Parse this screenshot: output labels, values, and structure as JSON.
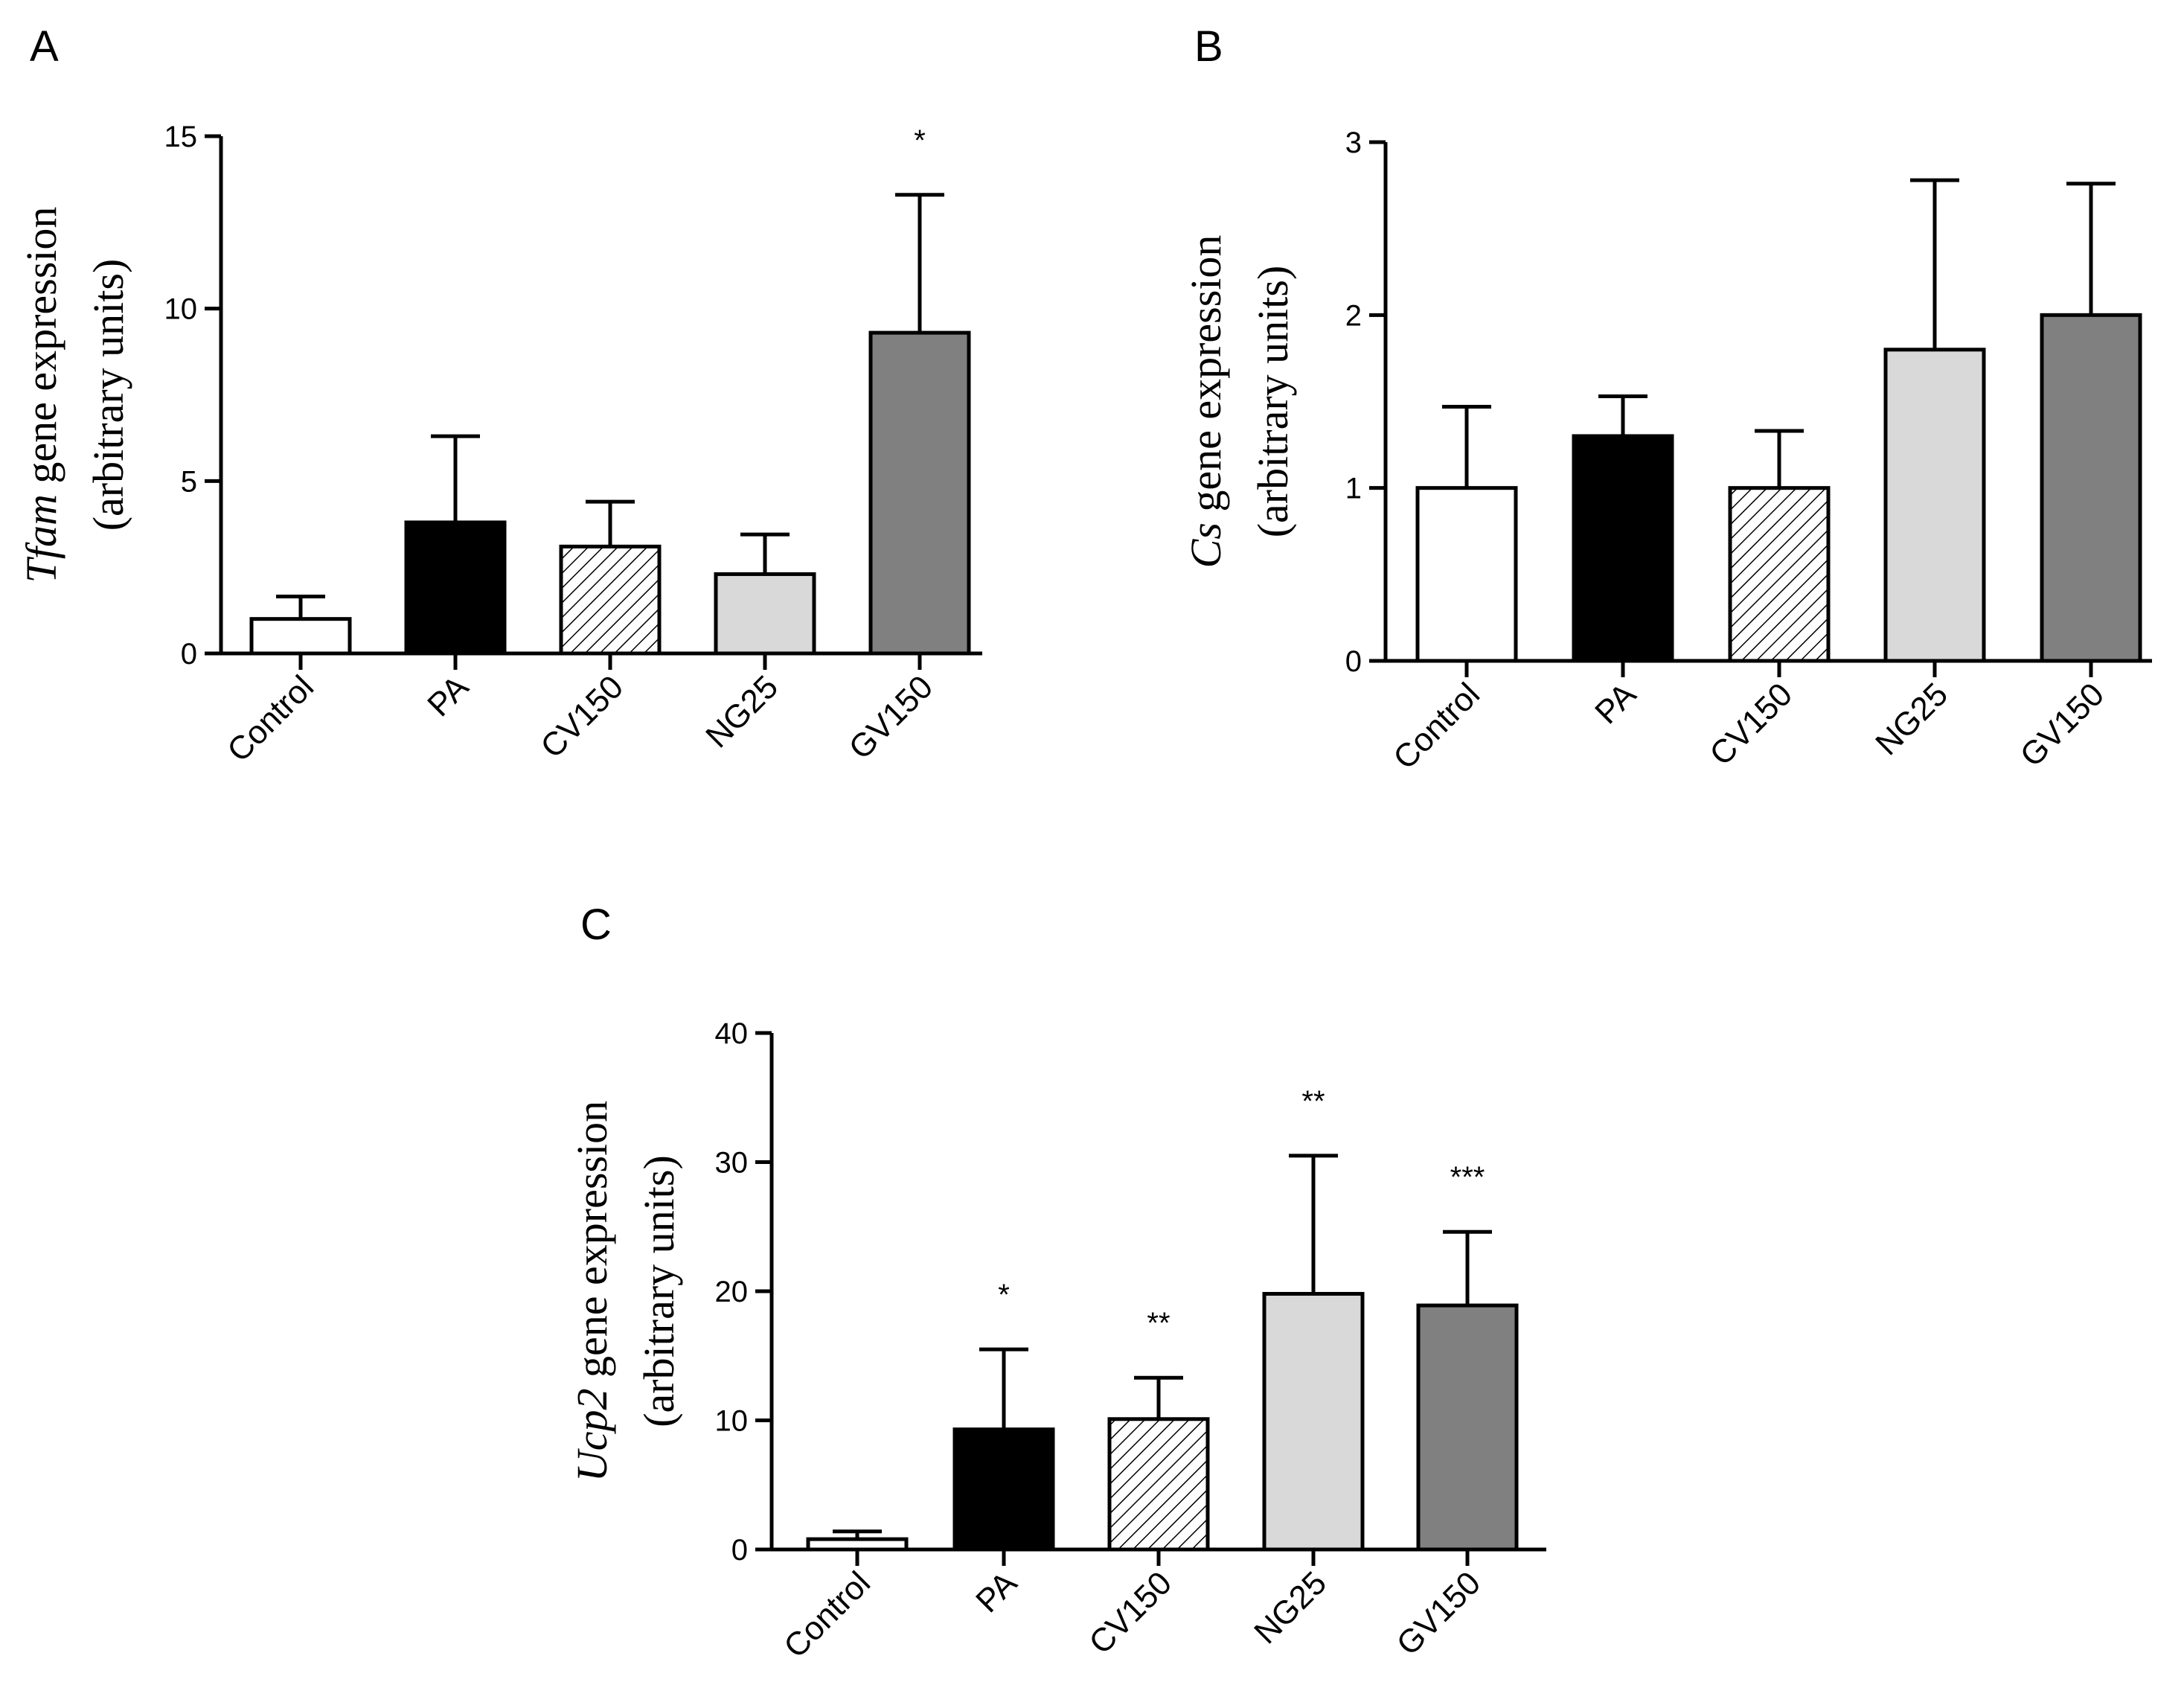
{
  "chart_data": [
    {
      "panel": "A",
      "type": "bar",
      "categories": [
        "Control",
        "PA",
        "CV150",
        "NG25",
        "GV150"
      ],
      "values": [
        1.0,
        3.8,
        3.1,
        2.3,
        9.3
      ],
      "errors": [
        0.65,
        2.5,
        1.3,
        1.15,
        4.0
      ],
      "significance": [
        "",
        "",
        "",
        "",
        "*"
      ],
      "fills": [
        "#ffffff",
        "#000000",
        "hatch",
        "#d9d9d9",
        "#808080"
      ],
      "ylabel_gene": "Tfam",
      "ylabel_rest": " gene expression",
      "ylabel_units": "(arbitrary units)",
      "ylim": [
        0,
        15
      ],
      "yticks": [
        0,
        5,
        10,
        15
      ],
      "ytick_labels": [
        "0",
        "5",
        "10",
        "15"
      ]
    },
    {
      "panel": "B",
      "type": "bar",
      "categories": [
        "Control",
        "PA",
        "CV150",
        "NG25",
        "GV150"
      ],
      "values": [
        1.0,
        1.3,
        1.0,
        1.8,
        2.0
      ],
      "errors": [
        0.47,
        0.23,
        0.33,
        0.98,
        0.76
      ],
      "significance": [
        "",
        "",
        "",
        "",
        ""
      ],
      "fills": [
        "#ffffff",
        "#000000",
        "hatch",
        "#d9d9d9",
        "#808080"
      ],
      "ylabel_gene": "Cs",
      "ylabel_rest": " gene expression",
      "ylabel_units": "(arbitrary units)",
      "ylim": [
        0,
        3
      ],
      "yticks": [
        0,
        1,
        2,
        3
      ],
      "ytick_labels": [
        "0",
        "1",
        "2",
        "3"
      ]
    },
    {
      "panel": "C",
      "type": "bar",
      "categories": [
        "Control",
        "PA",
        "CV150",
        "NG25",
        "GV150"
      ],
      "values": [
        0.8,
        9.3,
        10.1,
        19.8,
        18.9
      ],
      "errors": [
        0.6,
        6.2,
        3.2,
        10.7,
        5.7
      ],
      "significance": [
        "",
        "*",
        "**",
        "**",
        "***"
      ],
      "fills": [
        "#ffffff",
        "#000000",
        "hatch",
        "#d9d9d9",
        "#808080"
      ],
      "ylabel_gene": "Ucp2",
      "ylabel_rest": " gene expression",
      "ylabel_units": "(arbitrary units)",
      "ylim": [
        0,
        40
      ],
      "yticks": [
        0,
        10,
        20,
        30,
        40
      ],
      "ytick_labels": [
        "0",
        "10",
        "20",
        "30",
        "40"
      ]
    }
  ]
}
